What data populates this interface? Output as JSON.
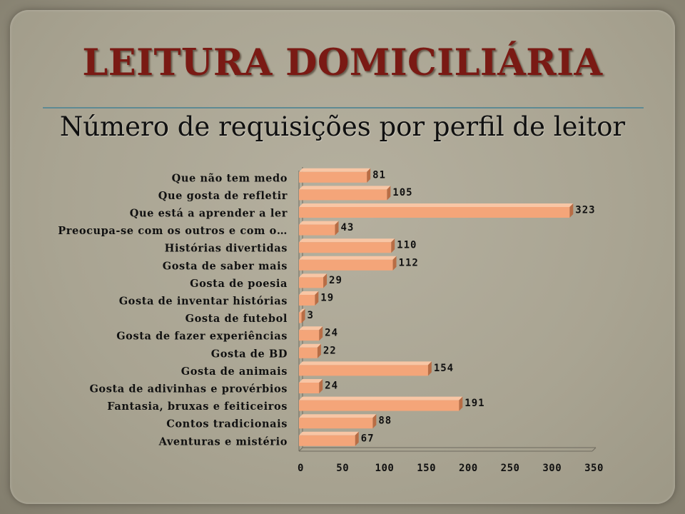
{
  "title": "LEITURA DOMICILIÁRIA",
  "subtitle": "Número de requisições por perfil de leitor",
  "colors": {
    "bar": "#f4a579",
    "bar_top": "#f8c6a5",
    "bar_side": "#b86d45",
    "title": "#7a1a14",
    "axis": "#6e6a5e"
  },
  "chart_data": {
    "type": "bar",
    "orientation": "horizontal",
    "title": "Número de requisições por perfil de leitor",
    "xlabel": "",
    "ylabel": "",
    "xlim": [
      0,
      350
    ],
    "xticks": [
      "0",
      "50",
      "100",
      "150",
      "200",
      "250",
      "300",
      "350"
    ],
    "grid": false,
    "legend": "none",
    "categories": [
      "Que não tem medo",
      "Que gosta de refletir",
      "Que está a aprender a ler",
      "Preocupa-se com os outros e com o…",
      "Histórias divertidas",
      "Gosta de saber mais",
      "Gosta de poesia",
      "Gosta de inventar histórias",
      "Gosta de futebol",
      "Gosta de fazer experiências",
      "Gosta de BD",
      "Gosta de animais",
      "Gosta de adivinhas e provérbios",
      "Fantasia, bruxas e feiticeiros",
      "Contos tradicionais",
      "Aventuras e mistério"
    ],
    "values": [
      81,
      105,
      323,
      43,
      110,
      112,
      29,
      19,
      3,
      24,
      22,
      154,
      24,
      191,
      88,
      67
    ]
  }
}
